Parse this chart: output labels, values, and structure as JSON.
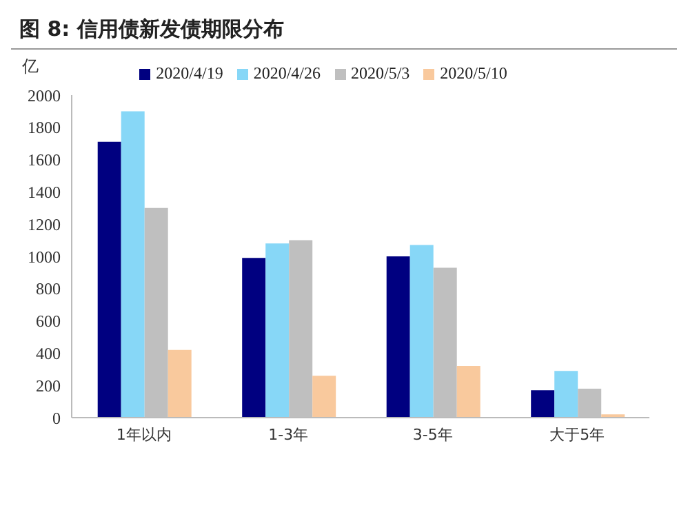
{
  "chart_data": {
    "type": "bar",
    "title": "图 8:  信用债新发债期限分布",
    "ylabel": "亿",
    "categories": [
      "1年以内",
      "1-3年",
      "3-5年",
      "大于5年"
    ],
    "series": [
      {
        "name": "2020/4/19",
        "color": "#000080",
        "values": [
          1710,
          990,
          1000,
          170
        ]
      },
      {
        "name": "2020/4/26",
        "color": "#87d7f7",
        "values": [
          1900,
          1080,
          1070,
          290
        ]
      },
      {
        "name": "2020/5/3",
        "color": "#bfbfbf",
        "values": [
          1300,
          1100,
          930,
          180
        ]
      },
      {
        "name": "2020/5/10",
        "color": "#f9c99d",
        "values": [
          420,
          260,
          320,
          20
        ]
      }
    ],
    "ylim": [
      0,
      2000
    ],
    "yticks": [
      0,
      200,
      400,
      600,
      800,
      1000,
      1200,
      1400,
      1600,
      1800,
      2000
    ],
    "grid": false,
    "legend": "top"
  }
}
